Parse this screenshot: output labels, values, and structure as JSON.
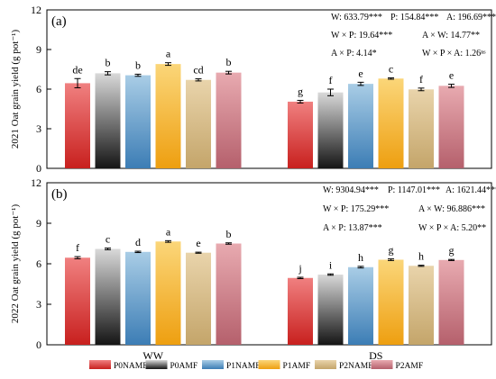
{
  "chart_data": [
    {
      "type": "bar",
      "panel_label": "(a)",
      "ylabel": "2021 Oat grain yield (g pot⁻¹)",
      "ylim": [
        0,
        12
      ],
      "yticks": [
        0,
        3,
        6,
        9,
        12
      ],
      "categories": [
        "WW",
        "DS"
      ],
      "show_xticklabels": false,
      "series": [
        {
          "name": "P0NAMF",
          "values": [
            6.45,
            5.05
          ],
          "errors": [
            0.35,
            0.1
          ],
          "letters": [
            "de",
            "g"
          ]
        },
        {
          "name": "P0AMF",
          "values": [
            7.2,
            5.75
          ],
          "errors": [
            0.12,
            0.25
          ],
          "letters": [
            "b",
            "f"
          ]
        },
        {
          "name": "P1NAMF",
          "values": [
            7.05,
            6.4
          ],
          "errors": [
            0.08,
            0.12
          ],
          "letters": [
            "b",
            "e"
          ]
        },
        {
          "name": "P1AMF",
          "values": [
            7.9,
            6.8
          ],
          "errors": [
            0.1,
            0.05
          ],
          "letters": [
            "a",
            "c"
          ]
        },
        {
          "name": "P2NAMF",
          "values": [
            6.7,
            5.98
          ],
          "errors": [
            0.08,
            0.1
          ],
          "letters": [
            "cd",
            "f"
          ]
        },
        {
          "name": "P2AMF",
          "values": [
            7.25,
            6.25
          ],
          "errors": [
            0.1,
            0.12
          ],
          "letters": [
            "b",
            "e"
          ]
        }
      ],
      "stats": [
        [
          "W: 633.79***",
          "P: 154.84***",
          "A: 196.69***"
        ],
        [
          "W × P: 19.64***",
          "A × W: 14.77**"
        ],
        [
          "A × P: 4.14*",
          "W × P × A: 1.26ⁿˢ"
        ]
      ]
    },
    {
      "type": "bar",
      "panel_label": "(b)",
      "ylabel": "2022 Oat grain yield (g pot⁻¹)",
      "ylim": [
        0,
        12
      ],
      "yticks": [
        0,
        3,
        6,
        9,
        12
      ],
      "categories": [
        "WW",
        "DS"
      ],
      "show_xticklabels": true,
      "series": [
        {
          "name": "P0NAMF",
          "values": [
            6.45,
            4.95
          ],
          "errors": [
            0.08,
            0.05
          ],
          "letters": [
            "f",
            "j"
          ]
        },
        {
          "name": "P0AMF",
          "values": [
            7.1,
            5.2
          ],
          "errors": [
            0.06,
            0.05
          ],
          "letters": [
            "c",
            "i"
          ]
        },
        {
          "name": "P1NAMF",
          "values": [
            6.88,
            5.75
          ],
          "errors": [
            0.05,
            0.06
          ],
          "letters": [
            "d",
            "h"
          ]
        },
        {
          "name": "P1AMF",
          "values": [
            7.65,
            6.3
          ],
          "errors": [
            0.06,
            0.06
          ],
          "letters": [
            "a",
            "g"
          ]
        },
        {
          "name": "P2NAMF",
          "values": [
            6.82,
            5.85
          ],
          "errors": [
            0.04,
            0.04
          ],
          "letters": [
            "e",
            "h"
          ]
        },
        {
          "name": "P2AMF",
          "values": [
            7.5,
            6.28
          ],
          "errors": [
            0.05,
            0.04
          ],
          "letters": [
            "b",
            "g"
          ]
        }
      ],
      "stats": [
        [
          "W: 9304.94***",
          "P: 1147.01***",
          "A: 1621.44***"
        ],
        [
          "W × P: 175.29***",
          "A × W: 96.886***"
        ],
        [
          "A × P: 13.87***",
          "W × P × A: 5.20**"
        ]
      ]
    }
  ],
  "legend": {
    "placement": "bottom",
    "entries": [
      "P0NAMF",
      "P0AMF",
      "P1NAMF",
      "P1AMF",
      "P2NAMF",
      "P2AMF"
    ]
  },
  "colors": {
    "P0NAMF": [
      "#f08080",
      "#c8201e"
    ],
    "P0AMF": [
      "#d9d9d9",
      "#151515"
    ],
    "P1NAMF": [
      "#a9cde6",
      "#3c7db5"
    ],
    "P1AMF": [
      "#fbd679",
      "#ee9f10"
    ],
    "P2NAMF": [
      "#e9d4ab",
      "#c4a56a"
    ],
    "P2AMF": [
      "#e8aab0",
      "#b5606c"
    ]
  }
}
